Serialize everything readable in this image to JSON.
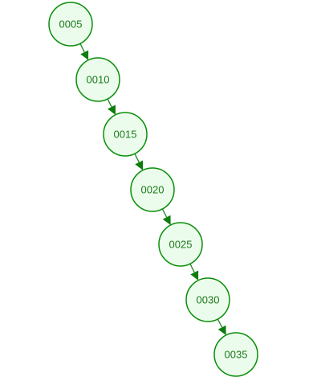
{
  "diagram": {
    "type": "tree",
    "colors": {
      "node_fill": "#ecfcec",
      "node_stroke": "#0a8f0a",
      "label": "#1a7a1a",
      "edge": "#1c8a1c"
    },
    "nodes": [
      {
        "id": "n1",
        "label": "0005"
      },
      {
        "id": "n2",
        "label": "0010"
      },
      {
        "id": "n3",
        "label": "0015"
      },
      {
        "id": "n4",
        "label": "0020"
      },
      {
        "id": "n5",
        "label": "0025"
      },
      {
        "id": "n6",
        "label": "0030"
      },
      {
        "id": "n7",
        "label": "0035"
      }
    ],
    "edges": [
      {
        "from": "n1",
        "to": "n2"
      },
      {
        "from": "n2",
        "to": "n3"
      },
      {
        "from": "n3",
        "to": "n4"
      },
      {
        "from": "n4",
        "to": "n5"
      },
      {
        "from": "n5",
        "to": "n6"
      },
      {
        "from": "n6",
        "to": "n7"
      }
    ]
  }
}
